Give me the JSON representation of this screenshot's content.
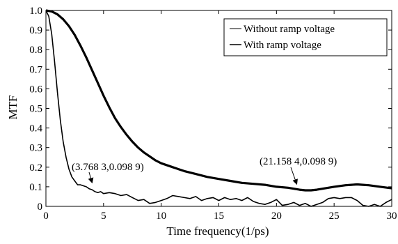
{
  "chart_data": {
    "type": "line",
    "title": "",
    "xlabel": "Time frequency(1/ps)",
    "ylabel": "MTF",
    "xlim": [
      0,
      30
    ],
    "ylim": [
      0,
      1.0
    ],
    "x_ticks": [
      "0",
      "5",
      "10",
      "15",
      "20",
      "25",
      "30"
    ],
    "y_ticks": [
      "0",
      "0.1",
      "0.2",
      "0.3",
      "0.4",
      "0.5",
      "0.6",
      "0.7",
      "0.8",
      "0.9",
      "1.0"
    ],
    "grid": false,
    "legend_position": "top-right",
    "series": [
      {
        "name": "Without ramp voltage",
        "color": "#000000",
        "x": [
          0,
          0.25,
          0.5,
          0.75,
          1.0,
          1.25,
          1.5,
          1.75,
          2.0,
          2.25,
          2.5,
          2.75,
          3.0,
          3.25,
          3.5,
          3.75,
          4.0,
          4.25,
          4.5,
          4.75,
          5.0,
          5.5,
          6.0,
          6.5,
          7.0,
          7.5,
          8.0,
          8.5,
          9.0,
          9.5,
          10.0,
          10.5,
          11.0,
          11.5,
          12.0,
          12.5,
          13.0,
          13.5,
          14.0,
          14.5,
          15.0,
          15.5,
          16.0,
          16.5,
          17.0,
          17.5,
          18.0,
          18.5,
          19.0,
          19.5,
          20.0,
          20.5,
          21.0,
          21.5,
          22.0,
          22.5,
          23.0,
          23.5,
          24.0,
          24.5,
          25.0,
          25.5,
          26.0,
          26.5,
          27.0,
          27.5,
          28.0,
          28.5,
          29.0,
          29.5,
          30.0
        ],
        "y": [
          1.0,
          0.97,
          0.88,
          0.74,
          0.58,
          0.44,
          0.33,
          0.25,
          0.19,
          0.15,
          0.13,
          0.11,
          0.11,
          0.105,
          0.1,
          0.09,
          0.085,
          0.075,
          0.07,
          0.075,
          0.065,
          0.07,
          0.065,
          0.055,
          0.06,
          0.045,
          0.03,
          0.035,
          0.015,
          0.02,
          0.03,
          0.04,
          0.055,
          0.05,
          0.045,
          0.04,
          0.05,
          0.03,
          0.04,
          0.045,
          0.03,
          0.045,
          0.035,
          0.04,
          0.03,
          0.045,
          0.025,
          0.015,
          0.01,
          0.02,
          0.035,
          0.005,
          0.01,
          0.02,
          0.005,
          0.015,
          0.0,
          0.01,
          0.02,
          0.04,
          0.045,
          0.04,
          0.045,
          0.045,
          0.03,
          0.005,
          0.0,
          0.01,
          0.0,
          0.02,
          0.035
        ]
      },
      {
        "name": "With ramp voltage",
        "color": "#000000",
        "x": [
          0,
          0.5,
          1.0,
          1.5,
          2.0,
          2.5,
          3.0,
          3.5,
          4.0,
          4.5,
          5.0,
          5.5,
          6.0,
          6.5,
          7.0,
          7.5,
          8.0,
          8.5,
          9.0,
          9.5,
          10.0,
          11.0,
          12.0,
          13.0,
          14.0,
          15.0,
          16.0,
          17.0,
          18.0,
          19.0,
          20.0,
          21.0,
          21.5,
          22.0,
          22.5,
          23.0,
          23.5,
          24.0,
          25.0,
          26.0,
          26.5,
          27.0,
          27.5,
          28.0,
          29.0,
          30.0
        ],
        "y": [
          1.0,
          0.995,
          0.98,
          0.955,
          0.92,
          0.875,
          0.82,
          0.76,
          0.695,
          0.63,
          0.565,
          0.505,
          0.45,
          0.405,
          0.365,
          0.33,
          0.3,
          0.275,
          0.255,
          0.235,
          0.22,
          0.2,
          0.18,
          0.165,
          0.15,
          0.14,
          0.13,
          0.12,
          0.115,
          0.11,
          0.1,
          0.095,
          0.09,
          0.085,
          0.082,
          0.082,
          0.085,
          0.09,
          0.1,
          0.108,
          0.11,
          0.112,
          0.11,
          0.108,
          0.1,
          0.092
        ]
      }
    ],
    "annotations": [
      {
        "text": "(3.768 3,0.098 9)",
        "x": 3.7683,
        "y": 0.0989
      },
      {
        "text": "(21.158 4,0.098 9)",
        "x": 21.1584,
        "y": 0.0989
      }
    ]
  }
}
